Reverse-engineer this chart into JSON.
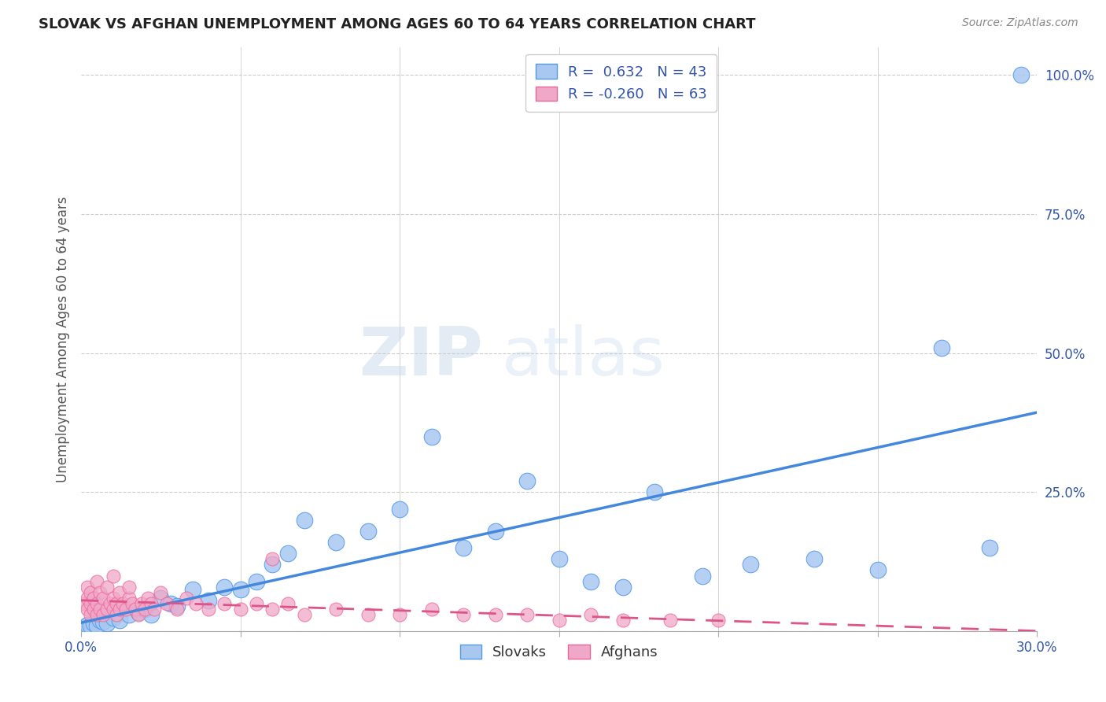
{
  "title": "SLOVAK VS AFGHAN UNEMPLOYMENT AMONG AGES 60 TO 64 YEARS CORRELATION CHART",
  "source": "Source: ZipAtlas.com",
  "ylabel": "Unemployment Among Ages 60 to 64 years",
  "xlim": [
    0.0,
    0.3
  ],
  "ylim": [
    0.0,
    1.05
  ],
  "xticks": [
    0.0,
    0.05,
    0.1,
    0.15,
    0.2,
    0.25,
    0.3
  ],
  "xticklabels": [
    "0.0%",
    "",
    "",
    "",
    "",
    "",
    "30.0%"
  ],
  "ytick_positions": [
    0.0,
    0.25,
    0.5,
    0.75,
    1.0
  ],
  "yticklabels_right": [
    "",
    "25.0%",
    "50.0%",
    "75.0%",
    "100.0%"
  ],
  "slovak_color": "#a8c8f0",
  "afghan_color": "#f0a8c8",
  "slovak_edge_color": "#5599ee",
  "afghan_edge_color": "#ee6699",
  "slovak_line_color": "#4488dd",
  "afghan_line_color": "#dd5588",
  "legend_slovak_label": "R =  0.632   N = 43",
  "legend_afghan_label": "R = -0.260   N = 63",
  "legend_title_slovak": "Slovaks",
  "legend_title_afghan": "Afghans",
  "slovak_x": [
    0.001,
    0.002,
    0.003,
    0.004,
    0.005,
    0.006,
    0.007,
    0.008,
    0.01,
    0.012,
    0.015,
    0.018,
    0.02,
    0.022,
    0.025,
    0.028,
    0.03,
    0.035,
    0.04,
    0.045,
    0.05,
    0.055,
    0.06,
    0.065,
    0.07,
    0.08,
    0.09,
    0.1,
    0.11,
    0.12,
    0.13,
    0.14,
    0.15,
    0.16,
    0.17,
    0.18,
    0.195,
    0.21,
    0.23,
    0.25,
    0.27,
    0.285,
    0.295
  ],
  "slovak_y": [
    0.008,
    0.012,
    0.01,
    0.015,
    0.01,
    0.02,
    0.018,
    0.015,
    0.025,
    0.02,
    0.03,
    0.035,
    0.04,
    0.03,
    0.06,
    0.05,
    0.045,
    0.075,
    0.055,
    0.08,
    0.075,
    0.09,
    0.12,
    0.14,
    0.2,
    0.16,
    0.18,
    0.22,
    0.35,
    0.15,
    0.18,
    0.27,
    0.13,
    0.09,
    0.08,
    0.25,
    0.1,
    0.12,
    0.13,
    0.11,
    0.51,
    0.15,
    1.0
  ],
  "afghan_x": [
    0.001,
    0.002,
    0.002,
    0.002,
    0.003,
    0.003,
    0.003,
    0.004,
    0.004,
    0.005,
    0.005,
    0.005,
    0.006,
    0.006,
    0.007,
    0.007,
    0.008,
    0.008,
    0.009,
    0.01,
    0.01,
    0.01,
    0.011,
    0.011,
    0.012,
    0.012,
    0.013,
    0.014,
    0.015,
    0.015,
    0.016,
    0.017,
    0.018,
    0.019,
    0.02,
    0.021,
    0.022,
    0.023,
    0.025,
    0.027,
    0.03,
    0.033,
    0.036,
    0.04,
    0.045,
    0.05,
    0.055,
    0.06,
    0.065,
    0.07,
    0.08,
    0.09,
    0.1,
    0.11,
    0.12,
    0.13,
    0.14,
    0.15,
    0.16,
    0.17,
    0.185,
    0.2,
    0.06
  ],
  "afghan_y": [
    0.05,
    0.04,
    0.06,
    0.08,
    0.03,
    0.05,
    0.07,
    0.04,
    0.06,
    0.03,
    0.05,
    0.09,
    0.04,
    0.07,
    0.03,
    0.06,
    0.04,
    0.08,
    0.05,
    0.04,
    0.06,
    0.1,
    0.03,
    0.05,
    0.04,
    0.07,
    0.05,
    0.04,
    0.06,
    0.08,
    0.05,
    0.04,
    0.03,
    0.05,
    0.04,
    0.06,
    0.05,
    0.04,
    0.07,
    0.05,
    0.04,
    0.06,
    0.05,
    0.04,
    0.05,
    0.04,
    0.05,
    0.04,
    0.05,
    0.03,
    0.04,
    0.03,
    0.03,
    0.04,
    0.03,
    0.03,
    0.03,
    0.02,
    0.03,
    0.02,
    0.02,
    0.02,
    0.13
  ]
}
